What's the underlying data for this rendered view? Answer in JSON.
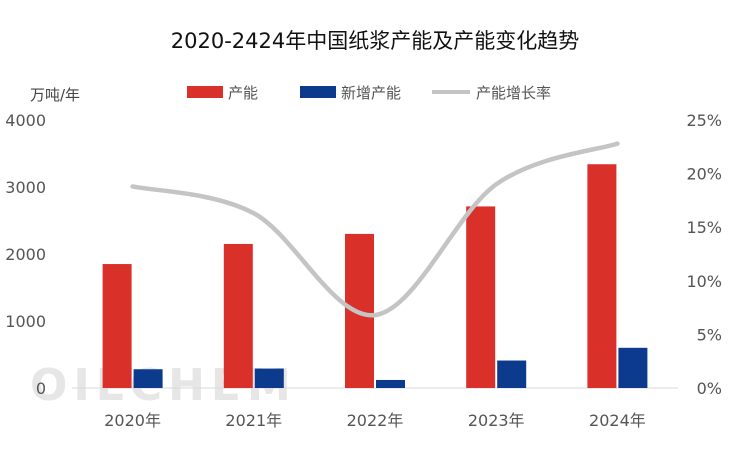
{
  "chart_data": {
    "type": "bar",
    "title": "2020-2424年中国纸浆产能及产能变化趋势",
    "ylabel": "万吨/年",
    "categories": [
      "2020年",
      "2021年",
      "2022年",
      "2023年",
      "2024年"
    ],
    "series": [
      {
        "name": "产能",
        "type": "bar",
        "color": "#d9302a",
        "values": [
          1850,
          2150,
          2300,
          2710,
          3340
        ]
      },
      {
        "name": "新增产能",
        "type": "bar",
        "color": "#0c3a8c",
        "values": [
          280,
          290,
          120,
          410,
          600
        ]
      },
      {
        "name": "产能增长率",
        "type": "line",
        "color": "#c4c4c4",
        "axis": "right",
        "values": [
          18.8,
          16.3,
          6.8,
          19.0,
          22.8
        ]
      }
    ],
    "ylim": [
      0,
      4000
    ],
    "yticks": [
      "0",
      "1000",
      "2000",
      "3000",
      "4000"
    ],
    "y2lim": [
      0,
      25
    ],
    "y2ticks": [
      "0%",
      "5%",
      "10%",
      "15%",
      "20%",
      "25%"
    ],
    "legend_position": "top",
    "grid": false
  },
  "watermark": "OILCHEM"
}
